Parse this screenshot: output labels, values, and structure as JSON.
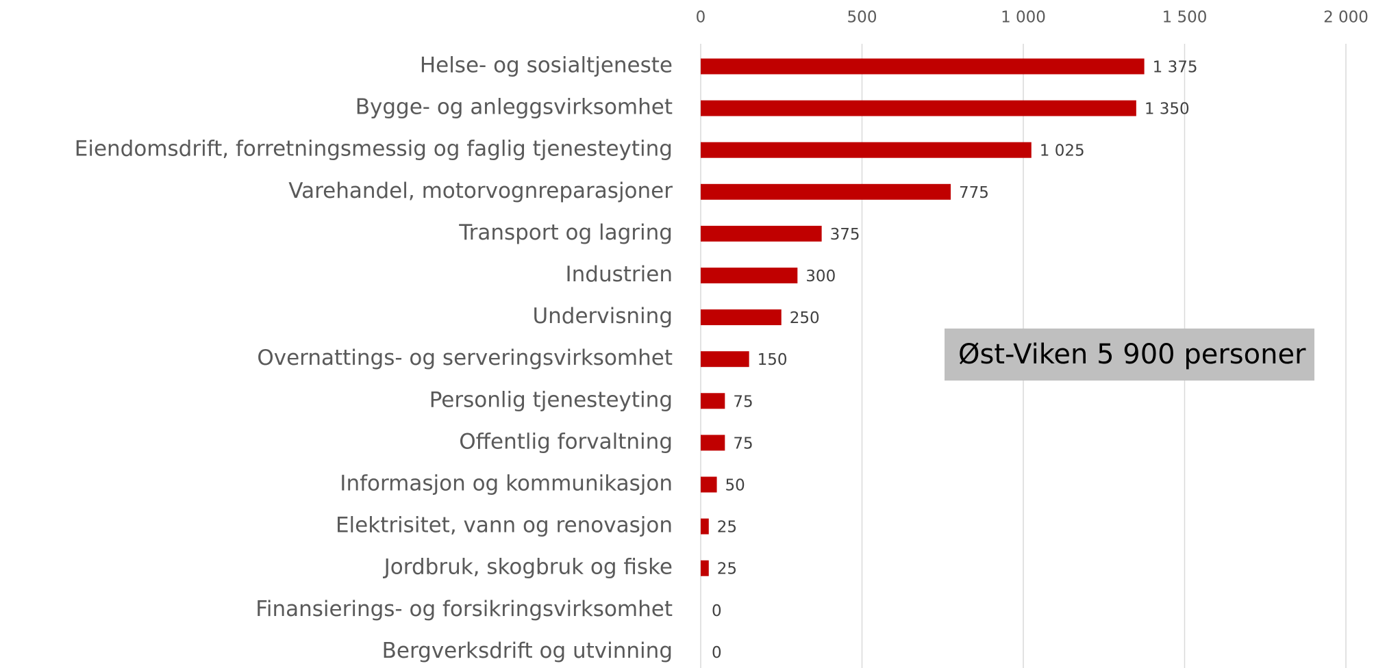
{
  "chart_data": {
    "type": "bar",
    "orientation": "horizontal",
    "categories": [
      "Helse- og sosialtjeneste",
      "Bygge- og anleggsvirksomhet",
      "Eiendomsdrift, forretningsmessig og faglig tjenesteyting",
      "Varehandel, motorvognreparasjoner",
      "Transport og lagring",
      "Industrien",
      "Undervisning",
      "Overnattings- og serveringsvirksomhet",
      "Personlig tjenesteyting",
      "Offentlig forvaltning",
      "Informasjon og kommunikasjon",
      "Elektrisitet, vann og renovasjon",
      "Jordbruk, skogbruk og fiske",
      "Finansierings- og forsikringsvirksomhet",
      "Bergverksdrift og utvinning"
    ],
    "values": [
      1375,
      1350,
      1025,
      775,
      375,
      300,
      250,
      150,
      75,
      75,
      50,
      25,
      25,
      0,
      0
    ],
    "value_labels": [
      "1 375",
      "1 350",
      "1 025",
      "775",
      "375",
      "300",
      "250",
      "150",
      "75",
      "75",
      "50",
      "25",
      "25",
      "0",
      "0"
    ],
    "color": "#c00000",
    "xlim": [
      0,
      2000
    ],
    "xticks": [
      0,
      500,
      {
        "value": 1000,
        "label": "1 000"
      },
      {
        "value": 1500,
        "label": "1 500"
      },
      {
        "value": 2000,
        "label": "2 000"
      }
    ],
    "grid": true,
    "annotation": "Øst-Viken 5 900 personer"
  }
}
